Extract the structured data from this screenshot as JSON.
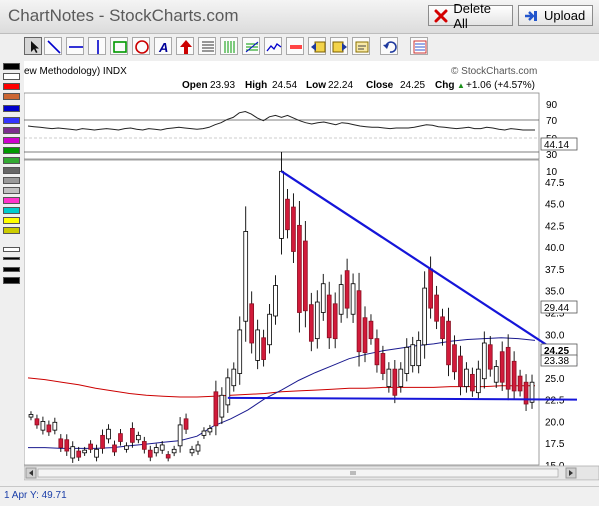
{
  "app": {
    "title": "ChartNotes - StockCharts.com",
    "delete_all_label": "Delete All",
    "upload_label": "Upload"
  },
  "toolbar": {
    "tools": [
      "pointer-tool",
      "trend-line-tool",
      "horizontal-line-tool",
      "vertical-line-tool",
      "rectangle-tool",
      "ellipse-tool",
      "text-tool",
      "arrow-tool",
      "horizontal-lines-tool",
      "vertical-lines-tool",
      "fibonacci-tool",
      "zoom-tool",
      "move-left-tool",
      "move-right-tool",
      "undo-tool",
      "erase-tool"
    ]
  },
  "palette": {
    "colors": [
      "#000000",
      "#ffffff",
      "#ff0000",
      "#d2691e",
      "#0000cc",
      "#1e1eff",
      "#7b2d8e",
      "#ff00ff",
      "#009900",
      "#33aa33",
      "#777777",
      "#999999",
      "#c0c0c0",
      "#ff33cc",
      "#00cccc",
      "#ffff00",
      "#cccc00"
    ]
  },
  "chart": {
    "indicator_label": "ew Methodology) INDX",
    "watermark": "© StockCharts.com",
    "ohlc": {
      "open_label": "Open",
      "open": "23.93",
      "high_label": "High",
      "high": "24.54",
      "low_label": "Low",
      "low": "22.24",
      "close_label": "Close",
      "close": "24.25",
      "chg_label": "Chg",
      "chg": "+1.06 (+4.57%)",
      "chg_arrow": "▲"
    },
    "rsi_axis_labels": [
      "90",
      "70",
      "50",
      "30",
      "10"
    ],
    "rsi_value": "44.14",
    "price_axis_labels": [
      "47.5",
      "45.0",
      "42.5",
      "40.0",
      "37.5",
      "35.0",
      "32.5",
      "30.0",
      "27.5",
      "25.0",
      "22.5",
      "20.0",
      "17.5",
      "15.0"
    ],
    "price_tags": [
      "29.44",
      "24.25",
      "23.38",
      "22.5"
    ]
  },
  "chart_data": {
    "type": "candlestick",
    "price_range": [
      15.0,
      50.0
    ],
    "rsi_range": [
      0,
      100
    ],
    "rsi_levels": [
      70,
      30
    ],
    "candles": [
      [
        20.8,
        20.8,
        20.8,
        20.5
      ],
      [
        20.3,
        20.3,
        20.3,
        19.6
      ],
      [
        20,
        20,
        20,
        19
      ],
      [
        19.6,
        19.6,
        19.6,
        18.8
      ],
      [
        19.9,
        19.9,
        19.9,
        19
      ],
      [
        18,
        18,
        18,
        17
      ],
      [
        17.9,
        17.9,
        17.9,
        16.6
      ],
      [
        17.1,
        17.1,
        17.1,
        15.8
      ],
      [
        16.6,
        16.6,
        16.6,
        15.9
      ],
      [
        16.7,
        16.7,
        16.7,
        16.4
      ],
      [
        17.4,
        17.4,
        17.4,
        16.8
      ],
      [
        16.8,
        16.8,
        16.8,
        15.9
      ],
      [
        18.4,
        18.4,
        18.4,
        16.9
      ],
      [
        19.1,
        19.1,
        19.1,
        18
      ],
      [
        17.3,
        17.3,
        17.3,
        16.5
      ],
      [
        18.6,
        18.6,
        18.6,
        17.7
      ],
      [
        17.2,
        17.2,
        17.2,
        16.8
      ],
      [
        19.2,
        19.2,
        19.2,
        17.6
      ],
      [
        18.4,
        18.4,
        18.4,
        17.9
      ],
      [
        17.7,
        17.7,
        17.7,
        16.8
      ],
      [
        16.7,
        16.7,
        16.7,
        15.9
      ],
      [
        17,
        17,
        17,
        16.4
      ],
      [
        17.3,
        17.3,
        17.3,
        16.7
      ],
      [
        16.2,
        16.2,
        16.2,
        15.8
      ],
      [
        16.8,
        16.8,
        16.8,
        16.4
      ],
      [
        19.6,
        19.6,
        19.6,
        17.2
      ],
      [
        20.3,
        20.3,
        20.3,
        19.1
      ],
      [
        16.8,
        16.8,
        16.8,
        16.4
      ],
      [
        17.3,
        17.3,
        17.3,
        16.6
      ],
      [
        18.9,
        18.9,
        18.9,
        18.4
      ],
      [
        19.2,
        19.2,
        19.2,
        18.8
      ],
      [
        23.4,
        23.4,
        23.4,
        19.5
      ],
      [
        23,
        23,
        23,
        20.5
      ],
      [
        25,
        25,
        25,
        21.9
      ],
      [
        26,
        26,
        26,
        24.1
      ],
      [
        30.5,
        30.5,
        30.5,
        25.5
      ],
      [
        41.8,
        41.8,
        41.8,
        31.5
      ],
      [
        33.5,
        33.5,
        33.5,
        29
      ],
      [
        30.5,
        30.5,
        30.5,
        27
      ],
      [
        29.6,
        29.6,
        29.6,
        27.1
      ],
      [
        32.3,
        32.3,
        32.3,
        28.8
      ],
      [
        35.6,
        35.6,
        35.6,
        32.1
      ],
      [
        48.7,
        48.7,
        48.7,
        41
      ],
      [
        45.5,
        45.5,
        45.5,
        42
      ],
      [
        44.6,
        44.6,
        44.6,
        39.5
      ],
      [
        42.5,
        42.5,
        42.5,
        32.5
      ],
      [
        40.7,
        40.7,
        40.7,
        32.7
      ],
      [
        33.4,
        33.4,
        33.4,
        29.2
      ],
      [
        33.7,
        33.7,
        33.7,
        29.5
      ],
      [
        35.8,
        35.8,
        35.8,
        32.5
      ],
      [
        34.5,
        34.5,
        34.5,
        29.6
      ],
      [
        33.5,
        33.5,
        33.5,
        29.5
      ],
      [
        35.7,
        35.7,
        35.7,
        32.3
      ],
      [
        37.3,
        37.3,
        37.3,
        33
      ],
      [
        35.8,
        35.8,
        35.8,
        32.3
      ],
      [
        35,
        35,
        35,
        28
      ],
      [
        31.9,
        31.9,
        31.9,
        27.9
      ],
      [
        31.5,
        31.5,
        31.5,
        29.5
      ],
      [
        29.5,
        29.5,
        29.5,
        26.5
      ],
      [
        27.8,
        27.8,
        27.8,
        25.5
      ],
      [
        26,
        26,
        26,
        24
      ],
      [
        26,
        26,
        26,
        23
      ],
      [
        26,
        26,
        26,
        24
      ],
      [
        28.5,
        28.5,
        28.5,
        25.5
      ],
      [
        28.8,
        28.8,
        28.8,
        26.4
      ],
      [
        29.3,
        29.3,
        29.3,
        26.4
      ],
      [
        35.3,
        35.3,
        35.3,
        28.8
      ],
      [
        37.5,
        37.5,
        37.5,
        33
      ],
      [
        34.5,
        34.5,
        34.5,
        31.5
      ],
      [
        32,
        32,
        32,
        29.5
      ],
      [
        31.5,
        31.5,
        31.5,
        26.5
      ],
      [
        28.8,
        28.8,
        28.8,
        25.7
      ],
      [
        27.5,
        27.5,
        27.5,
        24
      ],
      [
        26,
        26,
        26,
        24
      ],
      [
        25.4,
        25.4,
        25.4,
        23.5
      ],
      [
        26,
        26,
        26,
        23.3
      ],
      [
        29,
        29,
        29,
        24.9
      ],
      [
        28.8,
        28.8,
        28.8,
        26
      ],
      [
        26.3,
        26.3,
        26.3,
        24.5
      ],
      [
        28,
        28,
        28,
        24.5
      ],
      [
        28.5,
        28.5,
        28.5,
        23.7
      ],
      [
        26.9,
        26.9,
        26.9,
        23.5
      ],
      [
        25.2,
        25.2,
        25.2,
        23.5
      ],
      [
        24.5,
        24.5,
        24.5,
        22
      ],
      [
        24.5,
        24.5,
        24.5,
        22.2
      ]
    ],
    "bodies": [
      [
        20.8,
        20.5,
        0
      ],
      [
        20.3,
        19.6,
        1
      ],
      [
        20,
        19,
        0
      ],
      [
        19.6,
        18.8,
        1
      ],
      [
        19.9,
        19,
        0
      ],
      [
        18,
        17,
        1
      ],
      [
        17.9,
        16.6,
        1
      ],
      [
        17.1,
        15.8,
        0
      ],
      [
        16.6,
        15.9,
        1
      ],
      [
        16.7,
        16.4,
        0
      ],
      [
        17.4,
        16.8,
        1
      ],
      [
        16.8,
        15.9,
        0
      ],
      [
        18.4,
        16.9,
        1
      ],
      [
        19.1,
        18,
        0
      ],
      [
        17.3,
        16.5,
        1
      ],
      [
        18.6,
        17.7,
        1
      ],
      [
        17.2,
        16.8,
        0
      ],
      [
        19.2,
        17.6,
        1
      ],
      [
        18.4,
        17.9,
        0
      ],
      [
        17.7,
        16.8,
        1
      ],
      [
        16.7,
        15.9,
        1
      ],
      [
        17,
        16.4,
        0
      ],
      [
        17.3,
        16.7,
        0
      ],
      [
        16.2,
        15.8,
        1
      ],
      [
        16.8,
        16.4,
        0
      ],
      [
        19.6,
        17.2,
        0
      ],
      [
        20.3,
        19.1,
        1
      ],
      [
        16.8,
        16.4,
        0
      ],
      [
        17.3,
        16.6,
        0
      ],
      [
        18.9,
        18.4,
        0
      ],
      [
        19.2,
        18.8,
        0
      ],
      [
        23.4,
        19.5,
        1
      ],
      [
        23,
        20.5,
        0
      ],
      [
        25,
        21.9,
        0
      ],
      [
        26,
        24.1,
        0
      ],
      [
        30.5,
        25.5,
        0
      ],
      [
        41.8,
        31.5,
        0
      ],
      [
        33.5,
        29,
        1
      ],
      [
        30.5,
        27,
        0
      ],
      [
        29.6,
        27.1,
        1
      ],
      [
        32.3,
        28.8,
        0
      ],
      [
        35.6,
        32.1,
        0
      ],
      [
        48.7,
        41,
        0
      ],
      [
        45.5,
        42,
        1
      ],
      [
        44.6,
        39.5,
        1
      ],
      [
        42.5,
        32.5,
        1
      ],
      [
        40.7,
        32.7,
        1
      ],
      [
        33.4,
        29.2,
        1
      ],
      [
        33.7,
        29.5,
        0
      ],
      [
        35.8,
        32.5,
        0
      ],
      [
        34.5,
        29.6,
        1
      ],
      [
        33.5,
        29.5,
        1
      ],
      [
        35.7,
        32.3,
        0
      ],
      [
        37.3,
        33,
        1
      ],
      [
        35.8,
        32.3,
        0
      ],
      [
        35,
        28,
        1
      ],
      [
        31.9,
        27.9,
        1
      ],
      [
        31.5,
        29.5,
        1
      ],
      [
        29.5,
        26.5,
        1
      ],
      [
        27.8,
        25.5,
        1
      ],
      [
        26,
        24,
        0
      ],
      [
        26,
        23,
        1
      ],
      [
        26,
        24,
        0
      ],
      [
        28.5,
        25.5,
        0
      ],
      [
        28.8,
        26.4,
        0
      ],
      [
        29.3,
        26.4,
        0
      ],
      [
        35.3,
        28.8,
        0
      ],
      [
        37.5,
        33,
        1
      ],
      [
        34.5,
        31.5,
        1
      ],
      [
        32,
        29.5,
        1
      ],
      [
        31.5,
        26.5,
        1
      ],
      [
        28.8,
        25.7,
        1
      ],
      [
        27.5,
        24,
        1
      ],
      [
        26,
        24,
        0
      ],
      [
        25.4,
        23.5,
        1
      ],
      [
        26,
        23.3,
        0
      ],
      [
        29,
        24.9,
        0
      ],
      [
        28.8,
        26,
        1
      ],
      [
        26.3,
        24.5,
        0
      ],
      [
        28,
        24.5,
        1
      ],
      [
        28.5,
        23.7,
        1
      ],
      [
        26.9,
        23.5,
        1
      ],
      [
        25.2,
        23.5,
        1
      ],
      [
        24.5,
        22,
        1
      ],
      [
        24.5,
        22.2,
        0
      ]
    ],
    "ma_short": [
      17.0,
      17.0,
      16.9,
      16.9,
      16.9,
      17.0,
      17.2,
      17.4,
      17.6,
      17.8,
      18.3,
      19.5,
      20.3,
      21.3,
      22.6,
      23.6,
      24.7,
      25.6,
      26.4,
      27.2,
      27.7,
      28.1,
      28.4,
      28.7,
      28.9,
      29.2,
      29.4,
      29.5,
      29.6,
      29.5,
      29.3
    ],
    "ma_long": [
      25.0,
      24.8,
      24.5,
      24.2,
      23.8,
      23.5,
      23.2,
      23.0,
      22.9,
      22.8,
      22.8,
      22.9,
      23.0,
      23.1,
      23.2,
      23.4,
      23.5,
      23.6,
      23.7,
      23.8,
      23.8,
      23.9,
      23.9,
      23.9,
      23.9,
      24.0,
      24.0,
      24.0,
      24.1,
      24.1,
      24.1
    ],
    "rsi": [
      50,
      49,
      48,
      47,
      46,
      47,
      46,
      45,
      44,
      46,
      45,
      44,
      45,
      46,
      45,
      44,
      46,
      47,
      45,
      44,
      46,
      45,
      44,
      46,
      47,
      48,
      47,
      46,
      45,
      46,
      48,
      52,
      55,
      60,
      63,
      70,
      72,
      68,
      62,
      58,
      64,
      66,
      63,
      66,
      62,
      58,
      55,
      53,
      55,
      56,
      54,
      52,
      55,
      54,
      52,
      50,
      49,
      48,
      48,
      47,
      46,
      47,
      47,
      47,
      48,
      50,
      52,
      51,
      49,
      48,
      47,
      46,
      47,
      48,
      46,
      46,
      48,
      47,
      45,
      44,
      46,
      45,
      44,
      44,
      44
    ],
    "trendline_upper": [
      [
        42,
        48.7
      ],
      [
        86,
        26.5
      ]
    ],
    "trendline_lower": [
      [
        33,
        22.7
      ],
      [
        86,
        22.5
      ]
    ]
  }
}
